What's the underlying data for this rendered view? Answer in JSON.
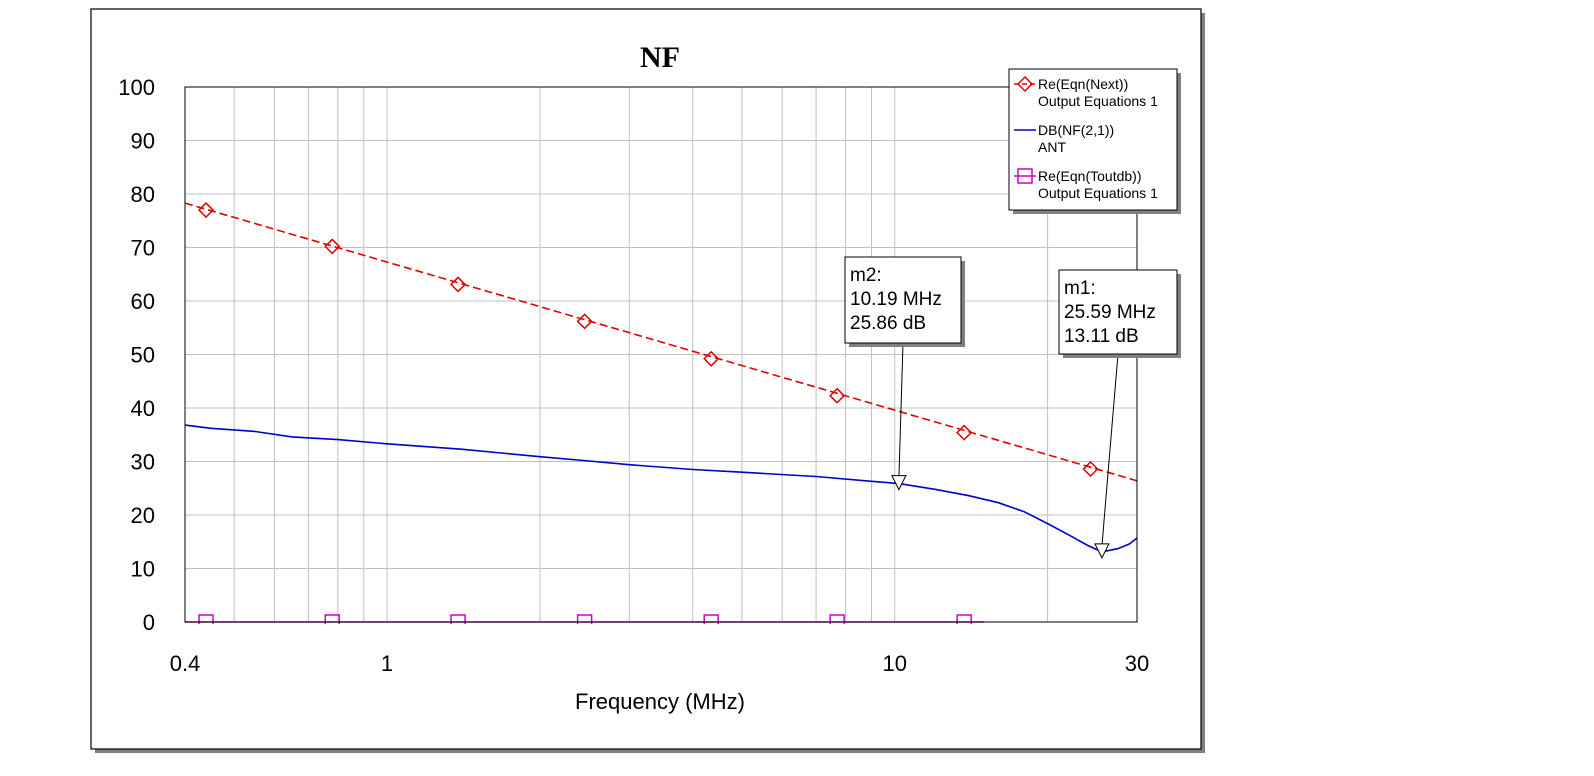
{
  "chart_data": {
    "type": "line",
    "title": "NF",
    "xlabel": "Frequency (MHz)",
    "ylabel": "",
    "x_scale": "log",
    "xlim": [
      0.4,
      30
    ],
    "ylim": [
      0,
      100
    ],
    "x_ticks": [
      {
        "value": 0.4,
        "label": "0.4"
      },
      {
        "value": 1,
        "label": "1"
      },
      {
        "value": 10,
        "label": "10"
      },
      {
        "value": 30,
        "label": "30"
      }
    ],
    "y_ticks": [
      {
        "value": 0,
        "label": "0"
      },
      {
        "value": 10,
        "label": "10"
      },
      {
        "value": 20,
        "label": "20"
      },
      {
        "value": 30,
        "label": "30"
      },
      {
        "value": 40,
        "label": "40"
      },
      {
        "value": 50,
        "label": "50"
      },
      {
        "value": 60,
        "label": "60"
      },
      {
        "value": 70,
        "label": "70"
      },
      {
        "value": 80,
        "label": "80"
      },
      {
        "value": 90,
        "label": "90"
      },
      {
        "value": 100,
        "label": "100"
      }
    ],
    "grid": "on",
    "legend_position": "top-right",
    "series": [
      {
        "name": "Re(Eqn(Next))",
        "source": "Output Equations 1",
        "color": "#e00000",
        "style": "dashed",
        "symbol": "diamond",
        "x": [
          0.4,
          30
        ],
        "y": [
          78.3,
          26.4
        ],
        "symbols_x": [
          0.44,
          0.78,
          1.38,
          2.45,
          4.35,
          7.7,
          13.7,
          24.3
        ],
        "symbols_y": [
          77.0,
          70.2,
          63.1,
          56.2,
          49.2,
          42.3,
          35.4,
          28.6
        ]
      },
      {
        "name": "DB(NF(2,1))",
        "source": "ANT",
        "color": "#0000cc",
        "style": "solid",
        "symbol": "none",
        "x": [
          0.4,
          0.45,
          0.55,
          0.65,
          0.8,
          1.0,
          1.4,
          2.0,
          2.5,
          3.0,
          4.0,
          5.0,
          7.0,
          9.0,
          10.19,
          12.0,
          14.0,
          16.0,
          18.0,
          20.0,
          22.0,
          24.0,
          25.59,
          27.5,
          29.0,
          30.0
        ],
        "y": [
          36.8,
          36.2,
          35.6,
          34.6,
          34.1,
          33.3,
          32.3,
          30.9,
          30.1,
          29.4,
          28.5,
          28.0,
          27.2,
          26.3,
          25.86,
          24.8,
          23.6,
          22.3,
          20.6,
          18.4,
          16.3,
          14.3,
          13.11,
          13.7,
          14.6,
          15.7
        ]
      },
      {
        "name": "Re(Eqn(Toutdb))",
        "source": "Output Equations 1",
        "color": "#cc00cc",
        "style": "solid",
        "symbol": "square",
        "x": [
          0.4,
          15.0
        ],
        "y": [
          0,
          0
        ],
        "symbols_x": [
          0.44,
          0.78,
          1.38,
          2.45,
          4.35,
          7.7,
          13.7
        ],
        "symbols_y": [
          0,
          0,
          0,
          0,
          0,
          0,
          0
        ]
      }
    ],
    "markers": [
      {
        "name": "m2:",
        "freq": "10.19 MHz",
        "value": "25.86 dB",
        "x": 10.19,
        "y": 25.86
      },
      {
        "name": "m1:",
        "freq": "25.59 MHz",
        "value": "13.11 dB",
        "x": 25.59,
        "y": 13.11
      }
    ]
  }
}
